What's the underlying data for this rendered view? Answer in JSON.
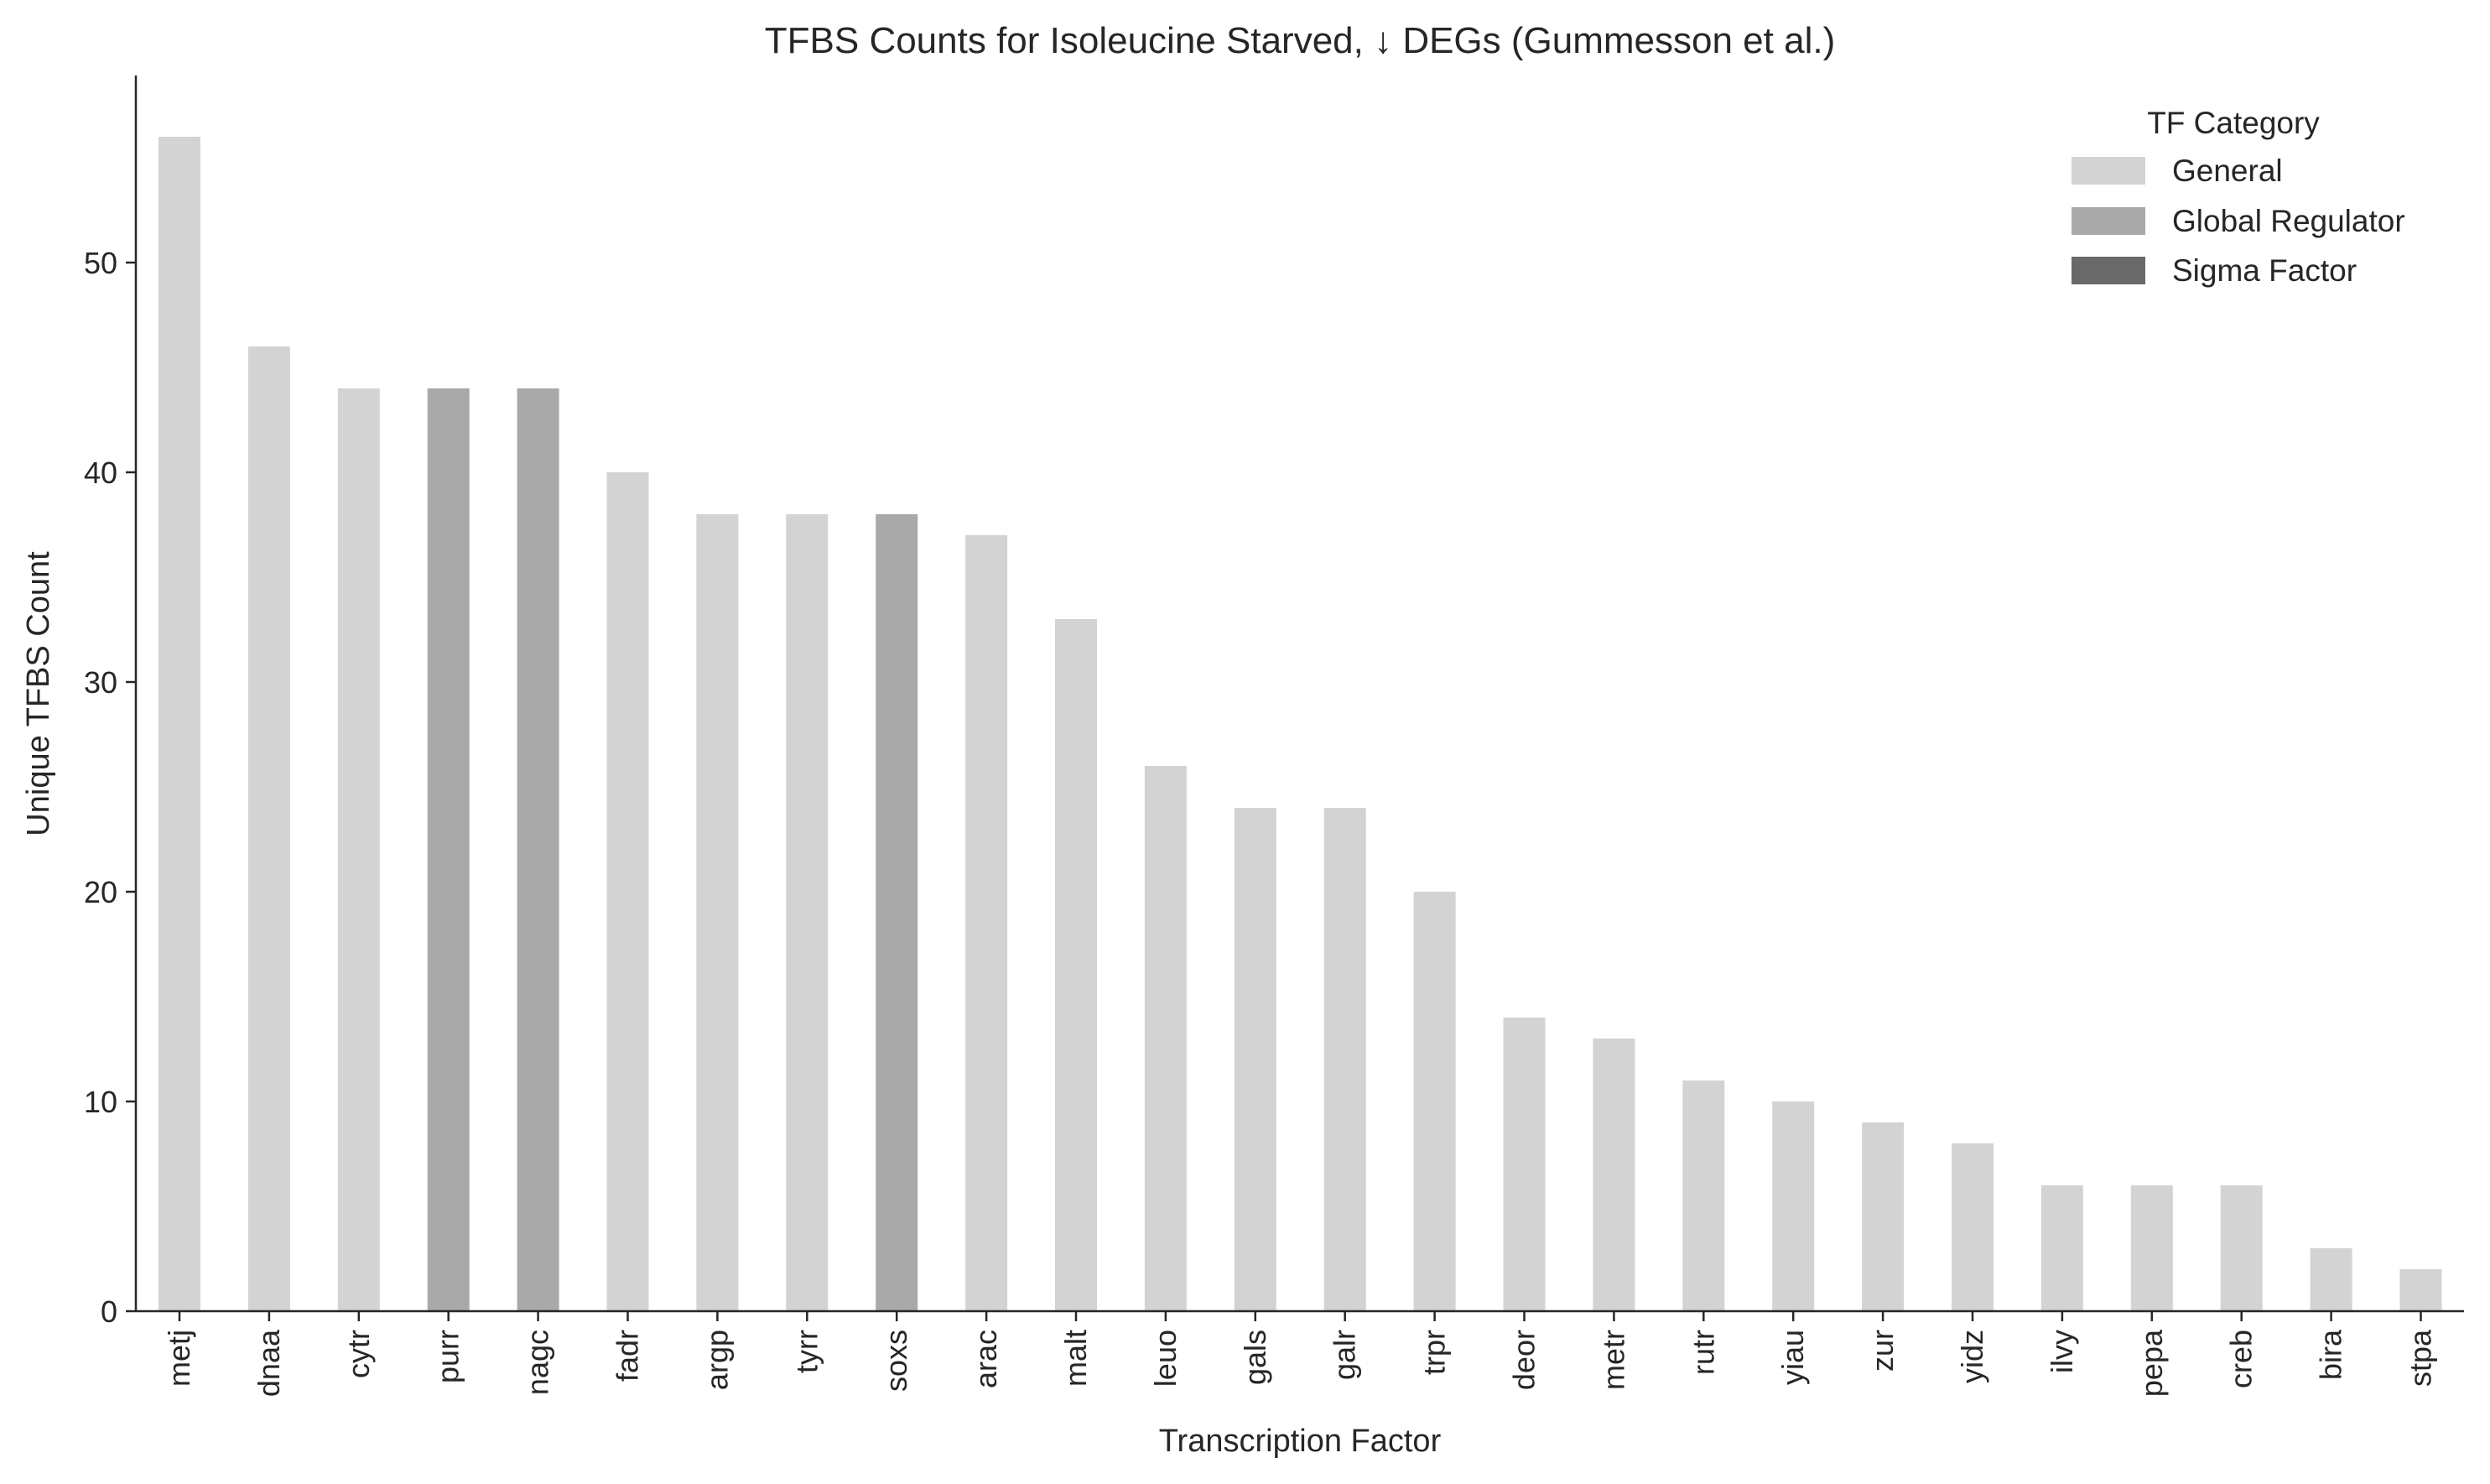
{
  "chart_data": {
    "type": "bar",
    "title": "TFBS Counts for Isoleucine Starved, ↓ DEGs (Gummesson et al.)",
    "xlabel": "Transcription Factor",
    "ylabel": "Unique TFBS Count",
    "ylim": [
      0,
      58
    ],
    "yticks": [
      0,
      10,
      20,
      30,
      40,
      50
    ],
    "grid": false,
    "categories": [
      "metj",
      "dnaa",
      "cytr",
      "purr",
      "nagc",
      "fadr",
      "argp",
      "tyrr",
      "soxs",
      "arac",
      "malt",
      "leuo",
      "gals",
      "galr",
      "trpr",
      "deor",
      "metr",
      "rutr",
      "yiau",
      "zur",
      "yidz",
      "ilvy",
      "pepa",
      "creb",
      "bira",
      "stpa"
    ],
    "values": [
      56,
      46,
      44,
      44,
      44,
      40,
      38,
      38,
      38,
      37,
      33,
      26,
      24,
      24,
      20,
      14,
      13,
      11,
      10,
      9,
      8,
      6,
      6,
      6,
      3,
      2
    ],
    "category_group": [
      "General",
      "General",
      "General",
      "Global Regulator",
      "Global Regulator",
      "General",
      "General",
      "General",
      "Global Regulator",
      "General",
      "General",
      "General",
      "General",
      "General",
      "General",
      "General",
      "General",
      "General",
      "General",
      "General",
      "General",
      "General",
      "General",
      "General",
      "General",
      "General"
    ],
    "legend": {
      "title": "TF Category",
      "placement": "top-right",
      "entries": [
        {
          "label": "General",
          "color": "#d3d3d3"
        },
        {
          "label": "Global Regulator",
          "color": "#a9a9a9"
        },
        {
          "label": "Sigma Factor",
          "color": "#696969"
        }
      ]
    }
  }
}
